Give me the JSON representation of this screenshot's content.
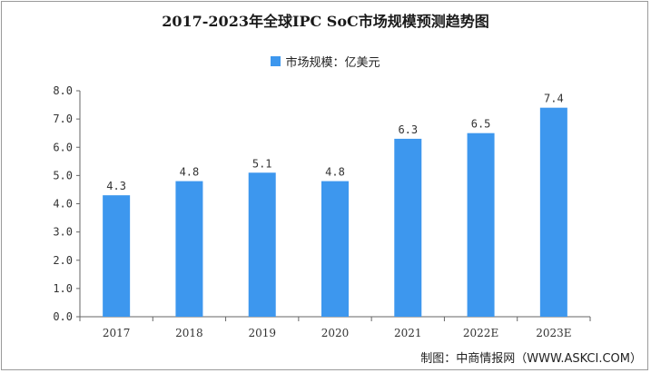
{
  "chart_data": {
    "type": "bar",
    "title": "2017-2023年全球IPC SoC市场规模预测趋势图",
    "legend": "市场规模：亿美元",
    "categories": [
      "2017",
      "2018",
      "2019",
      "2020",
      "2021",
      "2022E",
      "2023E"
    ],
    "series": [
      {
        "name": "市场规模：亿美元",
        "values": [
          4.3,
          4.8,
          5.1,
          4.8,
          6.3,
          6.5,
          7.4
        ]
      }
    ],
    "data_labels": [
      "4.3",
      "4.8",
      "5.1",
      "4.8",
      "6.3",
      "6.5",
      "7.4"
    ],
    "y_ticks": [
      "0.0",
      "1.0",
      "2.0",
      "3.0",
      "4.0",
      "5.0",
      "6.0",
      "7.0",
      "8.0"
    ],
    "ylim": [
      0,
      8
    ],
    "xlabel": "",
    "ylabel": "",
    "grid": false,
    "legend_position": "top-center",
    "bar_color": "#3d97ee"
  },
  "source": "制图：中商情报网（WWW.ASKCI.COM）"
}
